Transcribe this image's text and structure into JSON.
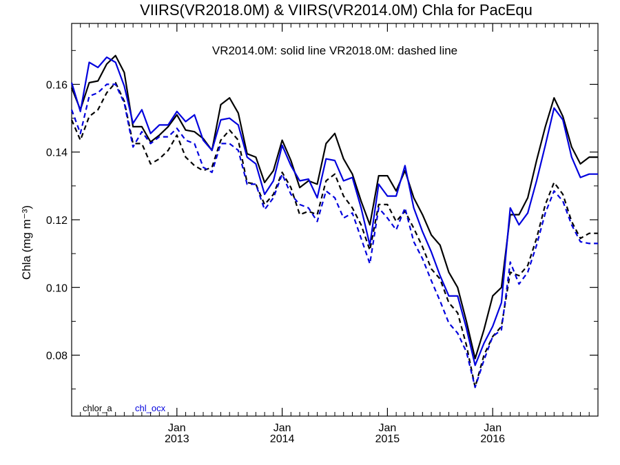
{
  "chart_data": {
    "type": "line",
    "title": "VIIRS(VR2018.0M) & VIIRS(VR2014.0M)  Chla for PacEqu",
    "subtitle": "VR2014.0M: solid line   VR2018.0M: dashed line",
    "ylabel": "Chla (mg m⁻³)",
    "xlabel": "",
    "xlim": [
      2012.0,
      2017.0
    ],
    "ylim": [
      0.062,
      0.178
    ],
    "yticks": [
      "0.08",
      "0.10",
      "0.12",
      "0.14",
      "0.16"
    ],
    "xticks": [
      {
        "month": "Jan",
        "year": "2013",
        "x": 2013.0
      },
      {
        "month": "Jan",
        "year": "2014",
        "x": 2014.0
      },
      {
        "month": "Jan",
        "year": "2015",
        "x": 2015.0
      },
      {
        "month": "Jan",
        "year": "2016",
        "x": 2016.0
      }
    ],
    "legend": [
      {
        "label": "chlor_a",
        "color": "#000000"
      },
      {
        "label": "chl_ocx",
        "color": "#0000dd"
      }
    ],
    "x": [
      2012.0,
      2012.0833,
      2012.1667,
      2012.25,
      2012.3333,
      2012.4167,
      2012.5,
      2012.5833,
      2012.6667,
      2012.75,
      2012.8333,
      2012.9167,
      2013.0,
      2013.0833,
      2013.1667,
      2013.25,
      2013.3333,
      2013.4167,
      2013.5,
      2013.5833,
      2013.6667,
      2013.75,
      2013.8333,
      2013.9167,
      2014.0,
      2014.0833,
      2014.1667,
      2014.25,
      2014.3333,
      2014.4167,
      2014.5,
      2014.5833,
      2014.6667,
      2014.75,
      2014.8333,
      2014.9167,
      2015.0,
      2015.0833,
      2015.1667,
      2015.25,
      2015.3333,
      2015.4167,
      2015.5,
      2015.5833,
      2015.6667,
      2015.75,
      2015.8333,
      2015.9167,
      2016.0,
      2016.0833,
      2016.1667,
      2016.25,
      2016.3333,
      2016.4167,
      2016.5,
      2016.5833,
      2016.6667,
      2016.75,
      2016.8333,
      2016.9167,
      2017.0
    ],
    "series": [
      {
        "name": "chlor_a",
        "dashed": false,
        "color": "#000000",
        "values": [
          0.159,
          0.1525,
          0.1605,
          0.161,
          0.166,
          0.1685,
          0.1635,
          0.1475,
          0.1475,
          0.143,
          0.145,
          0.1475,
          0.151,
          0.1465,
          0.146,
          0.144,
          0.1405,
          0.154,
          0.156,
          0.1515,
          0.1395,
          0.1385,
          0.131,
          0.1345,
          0.1435,
          0.1375,
          0.1295,
          0.1315,
          0.1305,
          0.1425,
          0.1455,
          0.138,
          0.1335,
          0.1255,
          0.1185,
          0.133,
          0.133,
          0.1285,
          0.1345,
          0.1265,
          0.1215,
          0.1155,
          0.1125,
          0.1045,
          0.1,
          0.09,
          0.079,
          0.0875,
          0.0975,
          0.1,
          0.1215,
          0.1215,
          0.1265,
          0.1375,
          0.1475,
          0.156,
          0.1505,
          0.1415,
          0.1365,
          0.1385,
          0.1385
        ]
      },
      {
        "name": "chl_ocx",
        "dashed": false,
        "color": "#0000dd",
        "values": [
          0.1605,
          0.152,
          0.1665,
          0.165,
          0.168,
          0.1665,
          0.1595,
          0.1485,
          0.1525,
          0.1455,
          0.148,
          0.148,
          0.152,
          0.149,
          0.151,
          0.1435,
          0.1405,
          0.1495,
          0.15,
          0.148,
          0.1385,
          0.1365,
          0.1275,
          0.1315,
          0.142,
          0.136,
          0.1315,
          0.132,
          0.1265,
          0.138,
          0.1375,
          0.1315,
          0.1325,
          0.1235,
          0.1125,
          0.1305,
          0.127,
          0.127,
          0.136,
          0.1235,
          0.1165,
          0.1105,
          0.1035,
          0.0975,
          0.0975,
          0.088,
          0.077,
          0.0835,
          0.0885,
          0.0955,
          0.1235,
          0.1185,
          0.122,
          0.1315,
          0.142,
          0.153,
          0.1495,
          0.1385,
          0.1325,
          0.1335,
          0.1335
        ]
      },
      {
        "name": "chlor_a (VR2018.0M)",
        "dashed": true,
        "color": "#000000",
        "values": [
          0.1495,
          0.1435,
          0.1505,
          0.1525,
          0.1575,
          0.1605,
          0.155,
          0.1425,
          0.1425,
          0.1365,
          0.138,
          0.1405,
          0.145,
          0.1385,
          0.136,
          0.1345,
          0.1355,
          0.1435,
          0.1465,
          0.1435,
          0.131,
          0.1305,
          0.1245,
          0.1275,
          0.134,
          0.1295,
          0.1215,
          0.1225,
          0.1215,
          0.1315,
          0.1335,
          0.127,
          0.1235,
          0.1185,
          0.111,
          0.1245,
          0.1245,
          0.1195,
          0.1225,
          0.1175,
          0.112,
          0.1055,
          0.1025,
          0.0955,
          0.0925,
          0.083,
          0.0705,
          0.08,
          0.0855,
          0.0885,
          0.1045,
          0.1035,
          0.1065,
          0.1145,
          0.1245,
          0.131,
          0.1275,
          0.1195,
          0.1145,
          0.116,
          0.116
        ]
      },
      {
        "name": "chl_ocx (VR2018.0M)",
        "dashed": true,
        "color": "#0000dd",
        "values": [
          0.1525,
          0.1455,
          0.1565,
          0.1575,
          0.16,
          0.16,
          0.1545,
          0.1415,
          0.146,
          0.1425,
          0.1445,
          0.1445,
          0.147,
          0.1435,
          0.1425,
          0.1355,
          0.134,
          0.1425,
          0.1425,
          0.1405,
          0.1305,
          0.1305,
          0.123,
          0.1265,
          0.1335,
          0.1275,
          0.1245,
          0.1235,
          0.1195,
          0.1285,
          0.1265,
          0.1205,
          0.122,
          0.1145,
          0.107,
          0.1235,
          0.1205,
          0.117,
          0.1235,
          0.1135,
          0.1085,
          0.102,
          0.096,
          0.0895,
          0.0865,
          0.081,
          0.0705,
          0.0785,
          0.0855,
          0.0875,
          0.1075,
          0.101,
          0.1045,
          0.1125,
          0.122,
          0.1285,
          0.1255,
          0.1185,
          0.1135,
          0.113,
          0.113
        ]
      }
    ]
  }
}
